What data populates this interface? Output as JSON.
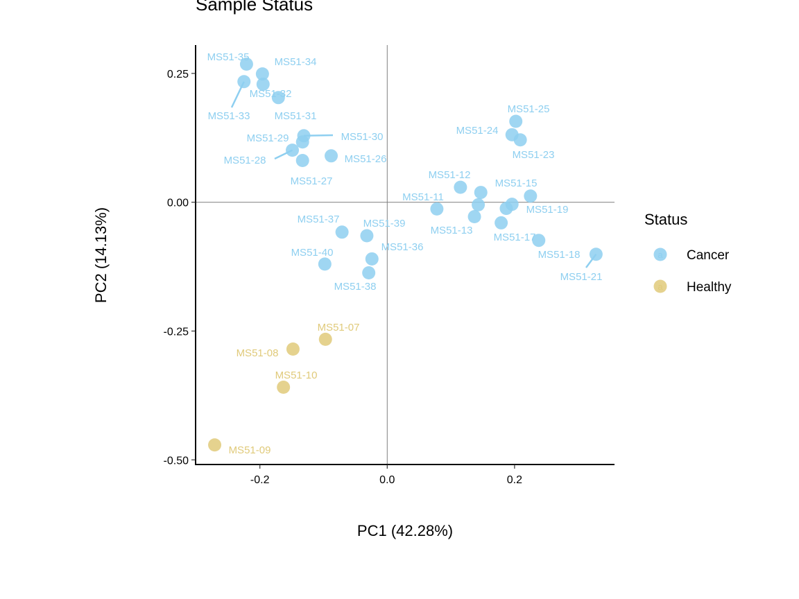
{
  "chart_data": {
    "type": "scatter",
    "title": "Sample Status",
    "xlabel": "PC1 (42.28%)",
    "ylabel": "PC2 (14.13%)",
    "xlim": [
      -0.301,
      0.357
    ],
    "ylim": [
      -0.509,
      0.305
    ],
    "xticks": [
      {
        "v": -0.2,
        "label": "-0.2"
      },
      {
        "v": 0.0,
        "label": "0.0"
      },
      {
        "v": 0.2,
        "label": "0.2"
      }
    ],
    "yticks": [
      {
        "v": 0.25,
        "label": "0.25"
      },
      {
        "v": 0.0,
        "label": "0.00"
      },
      {
        "v": -0.25,
        "label": "-0.25"
      },
      {
        "v": -0.5,
        "label": "-0.50"
      }
    ],
    "grid": false,
    "reference_lines": {
      "x": 0,
      "y": 0
    },
    "legend": {
      "title": "Status",
      "placement": "right",
      "key_glyph": "a",
      "entries": [
        {
          "name": "Cancer",
          "color": "#8ECFF0"
        },
        {
          "name": "Healthy",
          "color": "#E0CA7A"
        }
      ]
    },
    "points": [
      {
        "label": "MS51-35",
        "group": "Cancer",
        "x": -0.221,
        "y": 0.268
      },
      {
        "label": "MS51-34",
        "group": "Cancer",
        "x": -0.196,
        "y": 0.249
      },
      {
        "label": "MS51-32",
        "group": "Cancer",
        "x": -0.195,
        "y": 0.229
      },
      {
        "label": "MS51-33",
        "group": "Cancer",
        "x": -0.225,
        "y": 0.234
      },
      {
        "label": "MS51-31",
        "group": "Cancer",
        "x": -0.171,
        "y": 0.203
      },
      {
        "label": "MS51-30",
        "group": "Cancer",
        "x": -0.131,
        "y": 0.129
      },
      {
        "label": "MS51-29",
        "group": "Cancer",
        "x": -0.133,
        "y": 0.117
      },
      {
        "label": "MS51-28",
        "group": "Cancer",
        "x": -0.149,
        "y": 0.101
      },
      {
        "label": "MS51-27",
        "group": "Cancer",
        "x": -0.133,
        "y": 0.081
      },
      {
        "label": "MS51-26",
        "group": "Cancer",
        "x": -0.088,
        "y": 0.09
      },
      {
        "label": "MS51-25",
        "group": "Cancer",
        "x": 0.202,
        "y": 0.157
      },
      {
        "label": "MS51-24",
        "group": "Cancer",
        "x": 0.196,
        "y": 0.131
      },
      {
        "label": "MS51-23",
        "group": "Cancer",
        "x": 0.209,
        "y": 0.121
      },
      {
        "label": "MS51-12",
        "group": "Cancer",
        "x": 0.115,
        "y": 0.029
      },
      {
        "label": "MS51-15",
        "group": "Cancer",
        "x": 0.147,
        "y": 0.019
      },
      {
        "label": "MS51-11",
        "group": "Cancer",
        "x": 0.078,
        "y": -0.013
      },
      {
        "label": "MS51-13",
        "group": "Cancer",
        "x": 0.137,
        "y": -0.028
      },
      {
        "label": "MS51-19",
        "group": "Cancer",
        "x": 0.196,
        "y": -0.004
      },
      {
        "label": "MS51-17",
        "group": "Cancer",
        "x": 0.179,
        "y": -0.04
      },
      {
        "label": "MS51-18",
        "group": "Cancer",
        "x": 0.238,
        "y": -0.074
      },
      {
        "label": "MS51-21",
        "group": "Cancer",
        "x": 0.328,
        "y": -0.101
      },
      {
        "label": "",
        "group": "Cancer",
        "x": 0.225,
        "y": 0.012
      },
      {
        "label": "",
        "group": "Cancer",
        "x": 0.143,
        "y": -0.005
      },
      {
        "label": "",
        "group": "Cancer",
        "x": 0.187,
        "y": -0.012
      },
      {
        "label": "MS51-37",
        "group": "Cancer",
        "x": -0.071,
        "y": -0.058
      },
      {
        "label": "MS51-39",
        "group": "Cancer",
        "x": -0.032,
        "y": -0.065
      },
      {
        "label": "MS51-36",
        "group": "Cancer",
        "x": -0.024,
        "y": -0.11
      },
      {
        "label": "MS51-40",
        "group": "Cancer",
        "x": -0.098,
        "y": -0.12
      },
      {
        "label": "MS51-38",
        "group": "Cancer",
        "x": -0.029,
        "y": -0.137
      },
      {
        "label": "MS51-07",
        "group": "Healthy",
        "x": -0.097,
        "y": -0.266
      },
      {
        "label": "MS51-08",
        "group": "Healthy",
        "x": -0.148,
        "y": -0.285
      },
      {
        "label": "MS51-10",
        "group": "Healthy",
        "x": -0.163,
        "y": -0.359
      },
      {
        "label": "MS51-09",
        "group": "Healthy",
        "x": -0.271,
        "y": -0.471
      }
    ]
  }
}
